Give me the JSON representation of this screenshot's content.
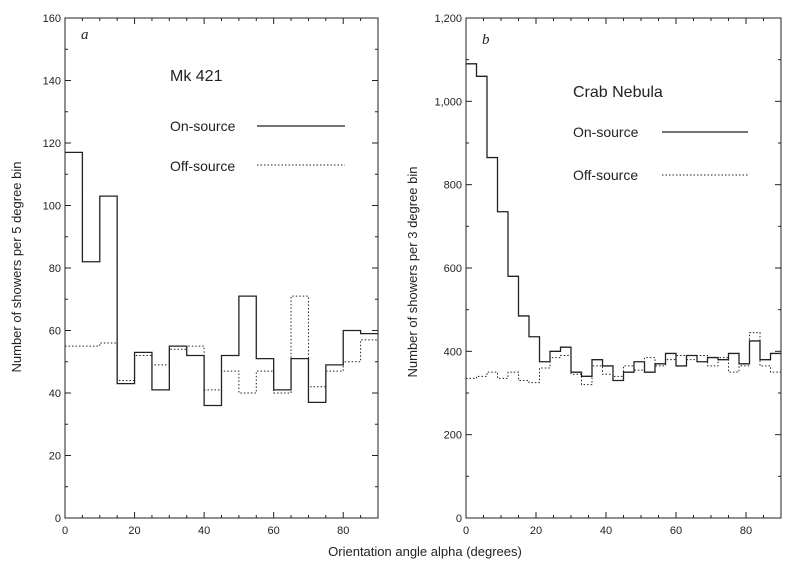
{
  "figure": {
    "xlabel": "Orientation angle alpha (degrees)"
  },
  "chart_data": [
    {
      "type": "line",
      "panel": "a",
      "title": "Mk 421",
      "xlabel": "Orientation angle alpha (degrees)",
      "ylabel": "Number of showers per 5 degree bin",
      "xlim": [
        0,
        90
      ],
      "ylim": [
        0,
        160
      ],
      "x_ticks": [
        0,
        20,
        40,
        60,
        80
      ],
      "y_ticks": [
        0,
        20,
        40,
        60,
        80,
        100,
        120,
        140,
        160
      ],
      "y_tick_labels": [
        "0",
        "20",
        "40",
        "60",
        "80",
        "100",
        "120",
        "140",
        "160"
      ],
      "bin_width": 5,
      "bin_edges": [
        0,
        5,
        10,
        15,
        20,
        25,
        30,
        35,
        40,
        45,
        50,
        55,
        60,
        65,
        70,
        75,
        80,
        85,
        90
      ],
      "legend_position": "upper-right",
      "grid": false,
      "series": [
        {
          "name": "On-source",
          "style": "solid",
          "values": [
            117,
            82,
            103,
            43,
            53,
            41,
            55,
            52,
            36,
            52,
            71,
            51,
            41,
            51,
            37,
            49,
            60,
            59
          ]
        },
        {
          "name": "Off-source",
          "style": "dotted",
          "values": [
            55,
            55,
            56,
            44,
            52,
            49,
            54,
            55,
            41,
            47,
            40,
            47,
            40,
            71,
            42,
            47,
            50,
            57
          ]
        }
      ]
    },
    {
      "type": "line",
      "panel": "b",
      "title": "Crab Nebula",
      "xlabel": "Orientation angle alpha (degrees)",
      "ylabel": "Number of showers per 3 degree bin",
      "xlim": [
        0,
        90
      ],
      "ylim": [
        0,
        1200
      ],
      "x_ticks": [
        0,
        20,
        40,
        60,
        80
      ],
      "y_ticks": [
        0,
        200,
        400,
        600,
        800,
        1000,
        1200
      ],
      "y_tick_labels": [
        "0",
        "200",
        "400",
        "600",
        "800",
        "1,000",
        "1,200"
      ],
      "bin_width": 3,
      "bin_edges": [
        0,
        3,
        6,
        9,
        12,
        15,
        18,
        21,
        24,
        27,
        30,
        33,
        36,
        39,
        42,
        45,
        48,
        51,
        54,
        57,
        60,
        63,
        66,
        69,
        72,
        75,
        78,
        81,
        84,
        87,
        90
      ],
      "legend_position": "upper-right",
      "grid": false,
      "series": [
        {
          "name": "On-source",
          "style": "solid",
          "values": [
            1090,
            1060,
            865,
            735,
            580,
            485,
            435,
            375,
            400,
            410,
            350,
            340,
            380,
            365,
            330,
            350,
            375,
            350,
            370,
            395,
            365,
            390,
            375,
            385,
            380,
            395,
            370,
            425,
            380,
            395
          ]
        },
        {
          "name": "Off-source",
          "style": "dotted",
          "values": [
            335,
            340,
            350,
            335,
            350,
            330,
            325,
            360,
            385,
            390,
            345,
            320,
            365,
            345,
            340,
            365,
            355,
            385,
            365,
            380,
            390,
            380,
            390,
            365,
            385,
            350,
            365,
            445,
            365,
            350
          ]
        }
      ]
    }
  ]
}
